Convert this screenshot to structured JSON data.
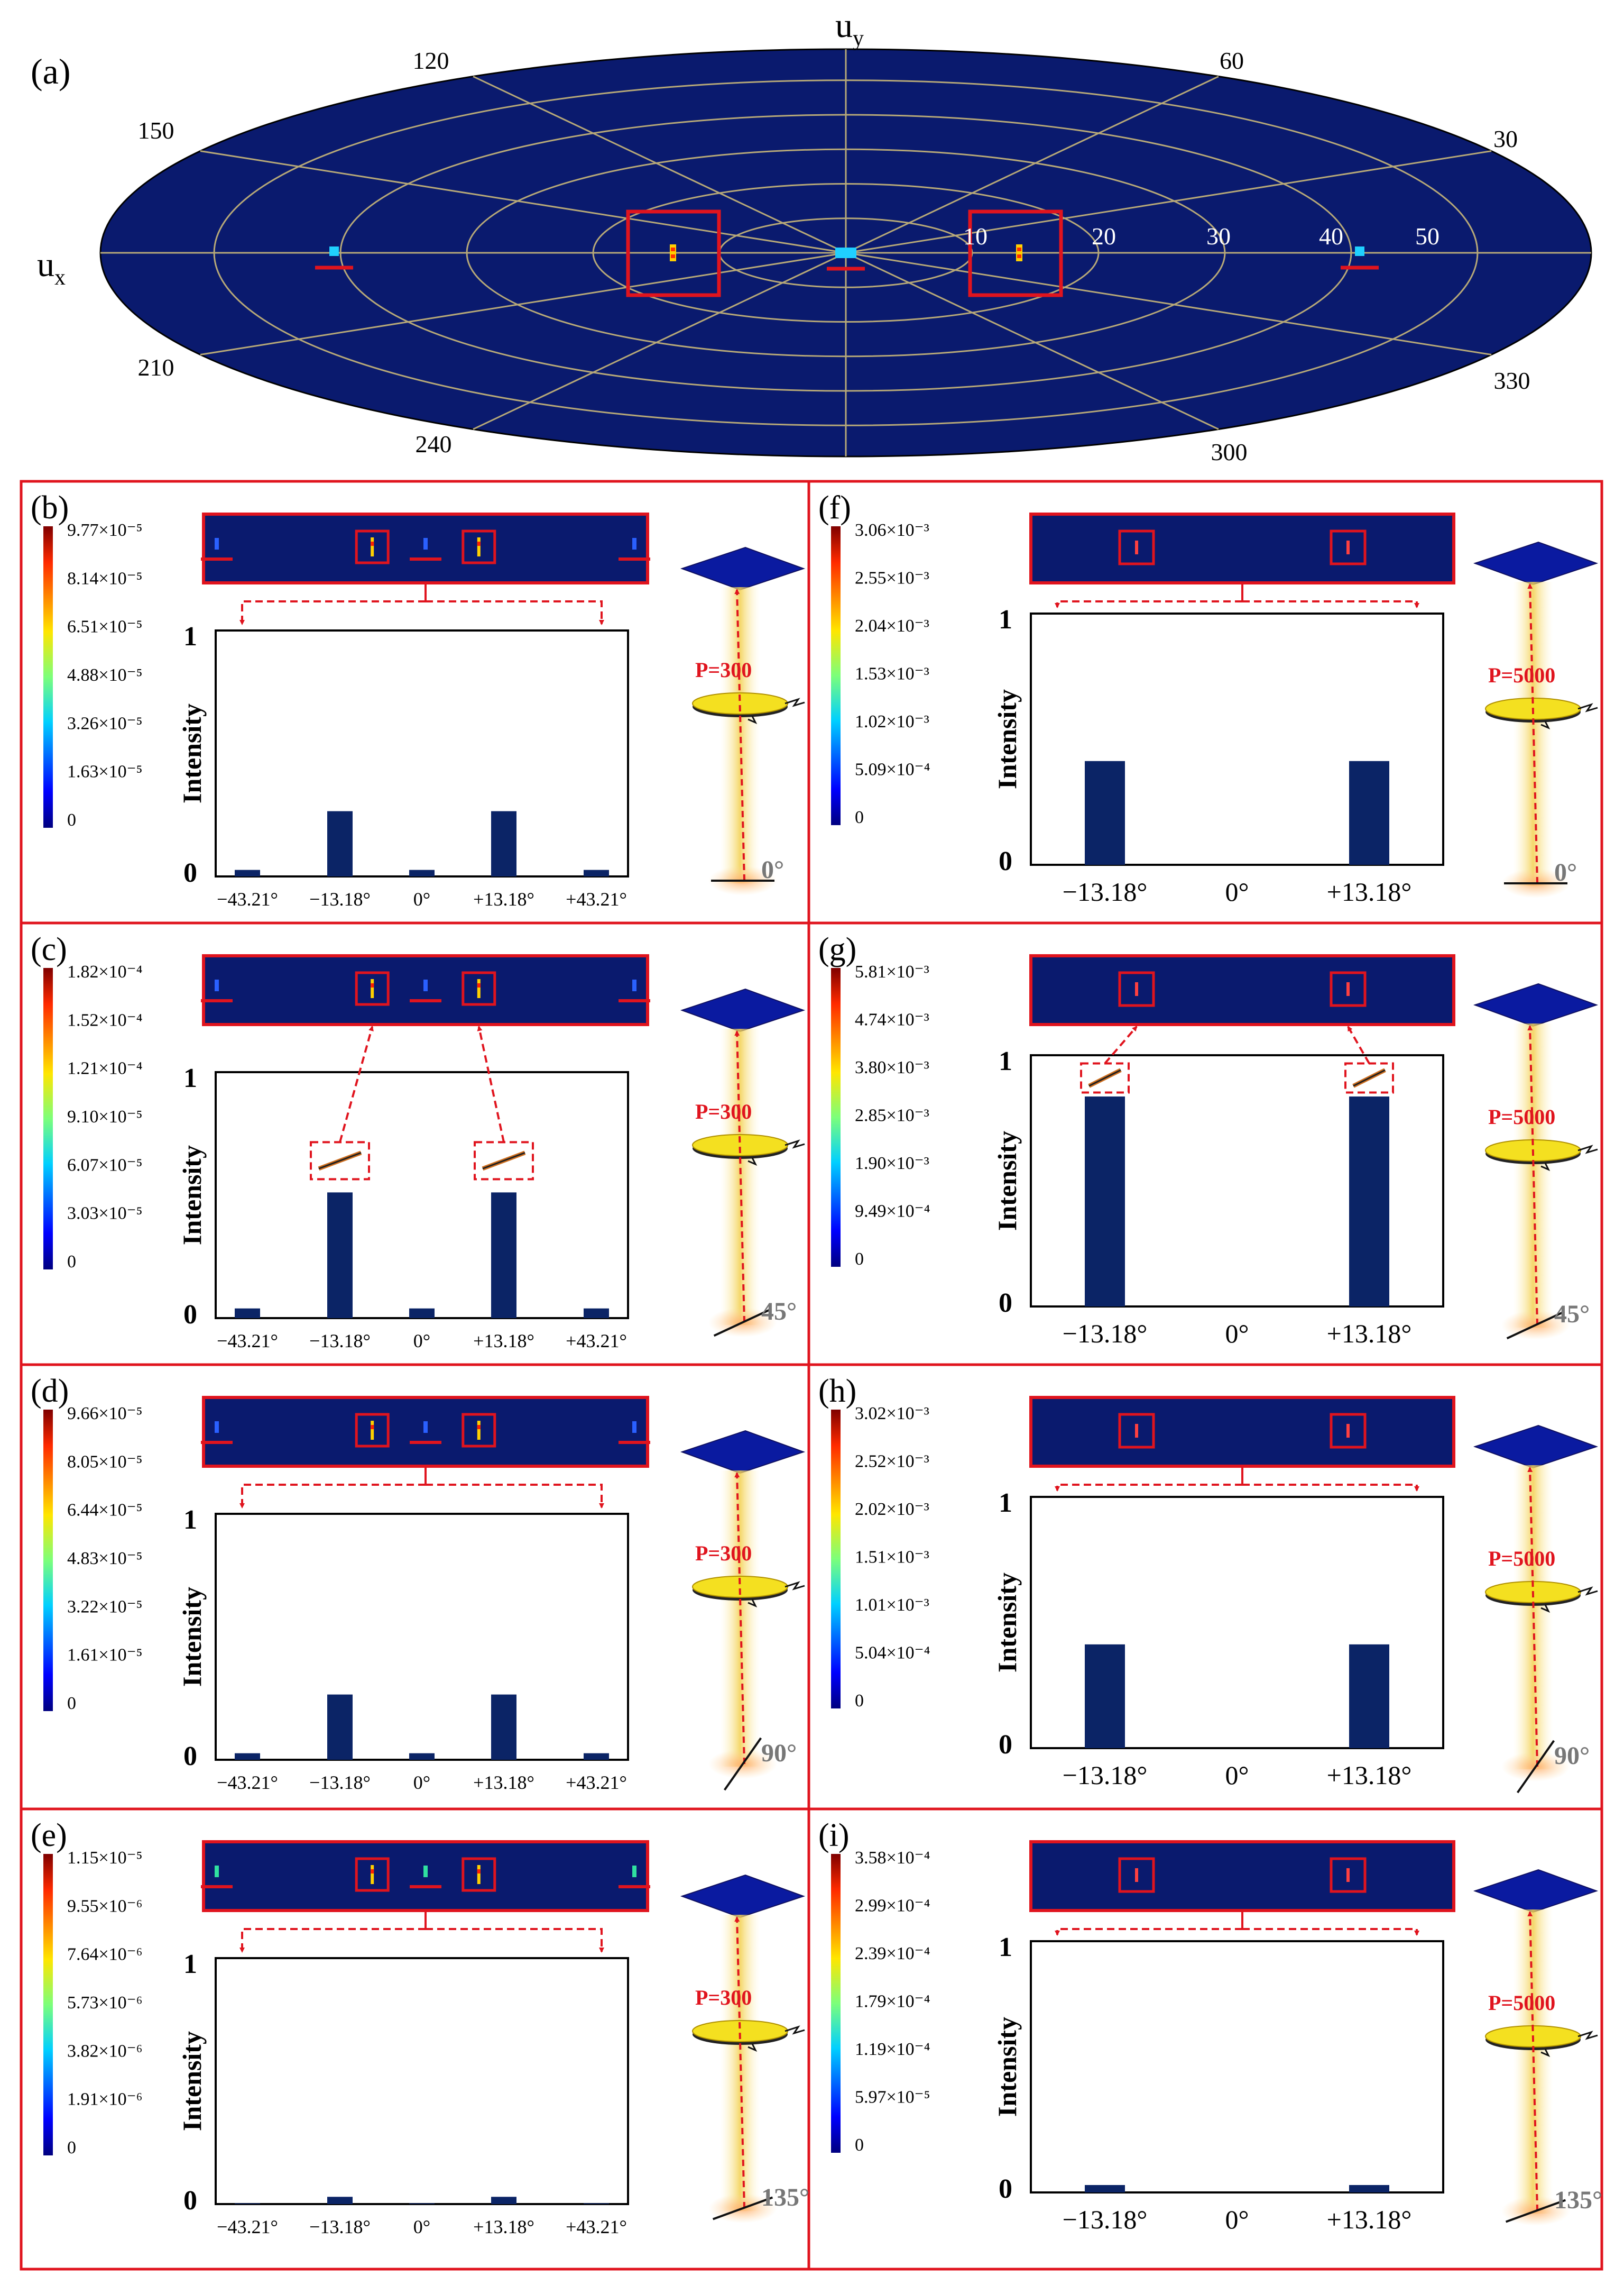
{
  "polar": {
    "label": "(a)",
    "ux": "u",
    "ux_sub": "x",
    "uy": "u",
    "uy_sub": "y",
    "angle_labels": [
      "30",
      "60",
      "120",
      "150",
      "210",
      "240",
      "300",
      "330"
    ],
    "radial_labels": [
      "10",
      "20",
      "30",
      "40",
      "50"
    ]
  },
  "panels": [
    {
      "label": "(b)",
      "type": "five",
      "colorbar": [
        "9.77×10⁻⁵",
        "8.14×10⁻⁵",
        "6.51×10⁻⁵",
        "4.88×10⁻⁵",
        "3.26×10⁻⁵",
        "1.63×10⁻⁵",
        "0"
      ],
      "ylabel": "Intensity",
      "ytop": "1",
      "ybot": "0",
      "xticks": [
        "−43.21°",
        "−13.18°",
        "0°",
        "+13.18°",
        "+43.21°"
      ],
      "bars": [
        0.027,
        0.27,
        0.027,
        0.27,
        0.027
      ],
      "zoom": false,
      "power": "P=300",
      "polarization": "0°"
    },
    {
      "label": "(c)",
      "type": "five",
      "colorbar": [
        "1.82×10⁻⁴",
        "1.52×10⁻⁴",
        "1.21×10⁻⁴",
        "9.10×10⁻⁵",
        "6.07×10⁻⁵",
        "3.03×10⁻⁵",
        "0"
      ],
      "ylabel": "Intensity",
      "ytop": "1",
      "ybot": "0",
      "xticks": [
        "−43.21°",
        "−13.18°",
        "0°",
        "+13.18°",
        "+43.21°"
      ],
      "bars": [
        0.04,
        0.52,
        0.04,
        0.52,
        0.04
      ],
      "zoom": true,
      "power": "P=300",
      "polarization": "45°"
    },
    {
      "label": "(d)",
      "type": "five",
      "colorbar": [
        "9.66×10⁻⁵",
        "8.05×10⁻⁵",
        "6.44×10⁻⁵",
        "4.83×10⁻⁵",
        "3.22×10⁻⁵",
        "1.61×10⁻⁵",
        "0"
      ],
      "ylabel": "Intensity",
      "ytop": "1",
      "ybot": "0",
      "xticks": [
        "−43.21°",
        "−13.18°",
        "0°",
        "+13.18°",
        "+43.21°"
      ],
      "bars": [
        0.027,
        0.27,
        0.027,
        0.27,
        0.027
      ],
      "zoom": false,
      "power": "P=300",
      "polarization": "90°"
    },
    {
      "label": "(e)",
      "type": "five",
      "colorbar": [
        "1.15×10⁻⁵",
        "9.55×10⁻⁶",
        "7.64×10⁻⁶",
        "5.73×10⁻⁶",
        "3.82×10⁻⁶",
        "1.91×10⁻⁶",
        "0"
      ],
      "ylabel": "Intensity",
      "ytop": "1",
      "ybot": "0",
      "xticks": [
        "−43.21°",
        "−13.18°",
        "0°",
        "+13.18°",
        "+43.21°"
      ],
      "bars": [
        0.003,
        0.03,
        0.003,
        0.03,
        0.003
      ],
      "zoom": false,
      "power": "P=300",
      "polarization": "135°"
    },
    {
      "label": "(f)",
      "type": "three",
      "colorbar": [
        "3.06×10⁻³",
        "2.55×10⁻³",
        "2.04×10⁻³",
        "1.53×10⁻³",
        "1.02×10⁻³",
        "5.09×10⁻⁴",
        "0"
      ],
      "ylabel": "Intensity",
      "ytop": "1",
      "ybot": "0",
      "xticks": [
        "−13.18°",
        "0°",
        "+13.18°"
      ],
      "bars": [
        0.42,
        0,
        0.42
      ],
      "zoom": false,
      "power": "P=5000",
      "polarization": "0°"
    },
    {
      "label": "(g)",
      "type": "three",
      "colorbar": [
        "5.81×10⁻³",
        "4.74×10⁻³",
        "3.80×10⁻³",
        "2.85×10⁻³",
        "1.90×10⁻³",
        "9.49×10⁻⁴",
        "0"
      ],
      "ylabel": "Intensity",
      "ytop": "1",
      "ybot": "0",
      "xticks": [
        "−13.18°",
        "0°",
        "+13.18°"
      ],
      "bars": [
        0.85,
        0,
        0.85
      ],
      "zoom": true,
      "power": "P=5000",
      "polarization": "45°"
    },
    {
      "label": "(h)",
      "type": "three",
      "colorbar": [
        "3.02×10⁻³",
        "2.52×10⁻³",
        "2.02×10⁻³",
        "1.51×10⁻³",
        "1.01×10⁻³",
        "5.04×10⁻⁴",
        "0"
      ],
      "ylabel": "Intensity",
      "ytop": "1",
      "ybot": "0",
      "xticks": [
        "−13.18°",
        "0°",
        "+13.18°"
      ],
      "bars": [
        0.42,
        0,
        0.42
      ],
      "zoom": false,
      "power": "P=5000",
      "polarization": "90°"
    },
    {
      "label": "(i)",
      "type": "three",
      "colorbar": [
        "3.58×10⁻⁴",
        "2.99×10⁻⁴",
        "2.39×10⁻⁴",
        "1.79×10⁻⁴",
        "1.19×10⁻⁴",
        "5.97×10⁻⁵",
        "0"
      ],
      "ylabel": "Intensity",
      "ytop": "1",
      "ybot": "0",
      "xticks": [
        "−13.18°",
        "0°",
        "+13.18°"
      ],
      "bars": [
        0.03,
        0,
        0.03
      ],
      "zoom": false,
      "power": "P=5000",
      "polarization": "135°"
    }
  ],
  "colors": {
    "field": "#0a1a6e",
    "frame": "#e0141e",
    "bar": "#0b2466",
    "grid": "#b6a878",
    "beam": "#f3d050",
    "lens": "#f4e020",
    "pol": "#8a8a8a"
  }
}
